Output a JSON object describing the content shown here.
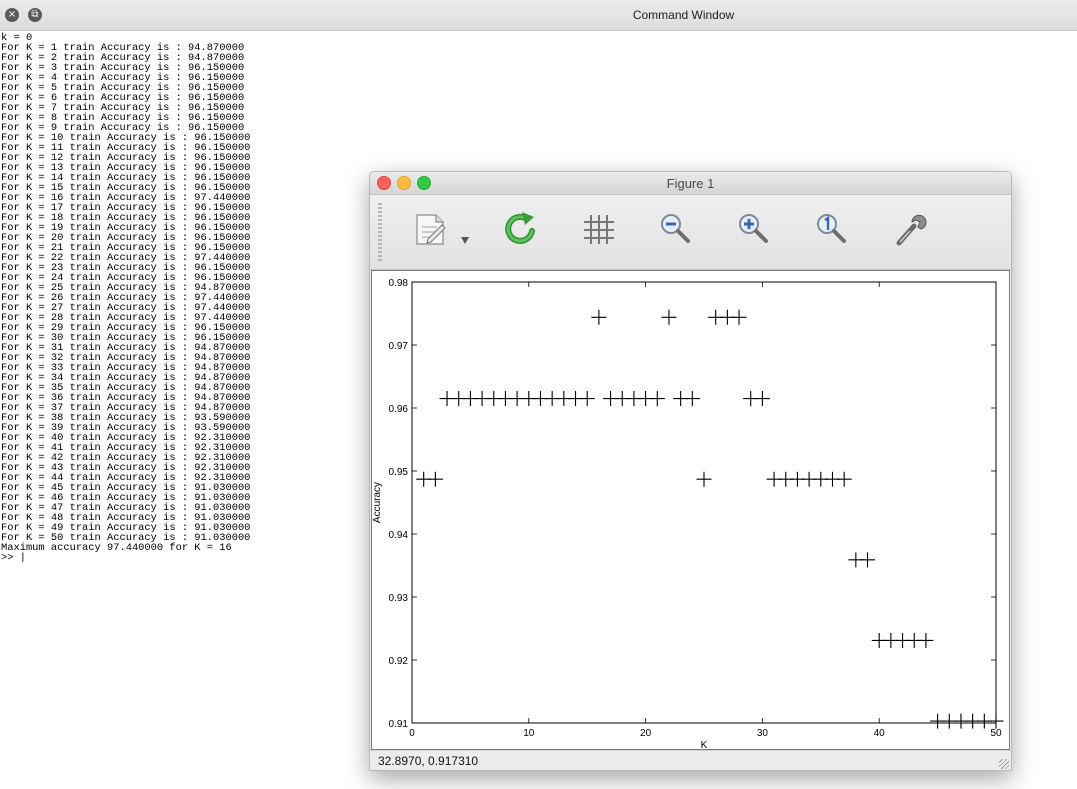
{
  "command_window": {
    "title": "Command Window",
    "close_glyph": "×",
    "restore_glyph": "⧉",
    "console_lines": [
      "k = 0",
      "For K = 1 train Accuracy is : 94.870000",
      "For K = 2 train Accuracy is : 94.870000",
      "For K = 3 train Accuracy is : 96.150000",
      "For K = 4 train Accuracy is : 96.150000",
      "For K = 5 train Accuracy is : 96.150000",
      "For K = 6 train Accuracy is : 96.150000",
      "For K = 7 train Accuracy is : 96.150000",
      "For K = 8 train Accuracy is : 96.150000",
      "For K = 9 train Accuracy is : 96.150000",
      "For K = 10 train Accuracy is : 96.150000",
      "For K = 11 train Accuracy is : 96.150000",
      "For K = 12 train Accuracy is : 96.150000",
      "For K = 13 train Accuracy is : 96.150000",
      "For K = 14 train Accuracy is : 96.150000",
      "For K = 15 train Accuracy is : 96.150000",
      "For K = 16 train Accuracy is : 97.440000",
      "For K = 17 train Accuracy is : 96.150000",
      "For K = 18 train Accuracy is : 96.150000",
      "For K = 19 train Accuracy is : 96.150000",
      "For K = 20 train Accuracy is : 96.150000",
      "For K = 21 train Accuracy is : 96.150000",
      "For K = 22 train Accuracy is : 97.440000",
      "For K = 23 train Accuracy is : 96.150000",
      "For K = 24 train Accuracy is : 96.150000",
      "For K = 25 train Accuracy is : 94.870000",
      "For K = 26 train Accuracy is : 97.440000",
      "For K = 27 train Accuracy is : 97.440000",
      "For K = 28 train Accuracy is : 97.440000",
      "For K = 29 train Accuracy is : 96.150000",
      "For K = 30 train Accuracy is : 96.150000",
      "For K = 31 train Accuracy is : 94.870000",
      "For K = 32 train Accuracy is : 94.870000",
      "For K = 33 train Accuracy is : 94.870000",
      "For K = 34 train Accuracy is : 94.870000",
      "For K = 35 train Accuracy is : 94.870000",
      "For K = 36 train Accuracy is : 94.870000",
      "For K = 37 train Accuracy is : 94.870000",
      "For K = 38 train Accuracy is : 93.590000",
      "For K = 39 train Accuracy is : 93.590000",
      "For K = 40 train Accuracy is : 92.310000",
      "For K = 41 train Accuracy is : 92.310000",
      "For K = 42 train Accuracy is : 92.310000",
      "For K = 43 train Accuracy is : 92.310000",
      "For K = 44 train Accuracy is : 92.310000",
      "For K = 45 train Accuracy is : 91.030000",
      "For K = 46 train Accuracy is : 91.030000",
      "For K = 47 train Accuracy is : 91.030000",
      "For K = 48 train Accuracy is : 91.030000",
      "For K = 49 train Accuracy is : 91.030000",
      "For K = 50 train Accuracy is : 91.030000",
      "Maximum accuracy 97.440000 for K = 16"
    ],
    "prompt": ">> |"
  },
  "figure_window": {
    "title": "Figure 1",
    "toolbar_tools": [
      {
        "name": "edit-document-icon",
        "glyph": "document"
      },
      {
        "name": "dropdown-arrow-icon",
        "glyph": "▼"
      },
      {
        "name": "refresh-icon",
        "glyph": "refresh"
      },
      {
        "name": "grid-icon",
        "glyph": "grid"
      },
      {
        "name": "zoom-out-icon",
        "glyph": "zoom-out"
      },
      {
        "name": "zoom-in-icon",
        "glyph": "zoom-in"
      },
      {
        "name": "zoom-reset-icon",
        "glyph": "zoom-1"
      },
      {
        "name": "wrench-icon",
        "glyph": "wrench"
      }
    ],
    "status": "32.8970,  0.917310"
  },
  "chart_data": {
    "type": "scatter",
    "marker": "+",
    "title": "",
    "xlabel": "K",
    "ylabel": "Accuracy",
    "xlim": [
      0,
      50
    ],
    "ylim": [
      0.91,
      0.98
    ],
    "xticks": [
      0,
      10,
      20,
      30,
      40,
      50
    ],
    "yticks": [
      0.91,
      0.92,
      0.93,
      0.94,
      0.95,
      0.96,
      0.97,
      0.98
    ],
    "ytick_labels": [
      "0.91",
      "0.92",
      "0.93",
      "0.94",
      "0.95",
      "0.96",
      "0.97",
      "0.98"
    ],
    "grid": false,
    "x": [
      1,
      2,
      3,
      4,
      5,
      6,
      7,
      8,
      9,
      10,
      11,
      12,
      13,
      14,
      15,
      16,
      17,
      18,
      19,
      20,
      21,
      22,
      23,
      24,
      25,
      26,
      27,
      28,
      29,
      30,
      31,
      32,
      33,
      34,
      35,
      36,
      37,
      38,
      39,
      40,
      41,
      42,
      43,
      44,
      45,
      46,
      47,
      48,
      49,
      50
    ],
    "y": [
      0.9487,
      0.9487,
      0.9615,
      0.9615,
      0.9615,
      0.9615,
      0.9615,
      0.9615,
      0.9615,
      0.9615,
      0.9615,
      0.9615,
      0.9615,
      0.9615,
      0.9615,
      0.9744,
      0.9615,
      0.9615,
      0.9615,
      0.9615,
      0.9615,
      0.9744,
      0.9615,
      0.9615,
      0.9487,
      0.9744,
      0.9744,
      0.9744,
      0.9615,
      0.9615,
      0.9487,
      0.9487,
      0.9487,
      0.9487,
      0.9487,
      0.9487,
      0.9487,
      0.9359,
      0.9359,
      0.9231,
      0.9231,
      0.9231,
      0.9231,
      0.9231,
      0.9103,
      0.9103,
      0.9103,
      0.9103,
      0.9103,
      0.9103
    ],
    "marker_color": "#000000"
  }
}
